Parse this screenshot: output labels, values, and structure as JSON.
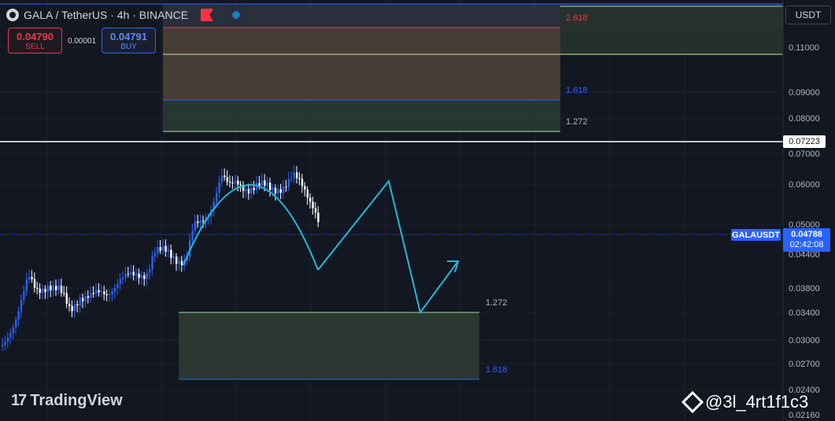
{
  "header": {
    "symbol": "GALA / TetherUS · 4h · BINANCE",
    "symbol_icon": "gala-coin-icon",
    "flag_icon": "flag-icon",
    "indicator_icon": "indicator-toggle-icon"
  },
  "trade": {
    "sell_price": "0.04790",
    "sell_label": "SELL",
    "spread": "0.00001",
    "buy_price": "0.04791",
    "buy_label": "BUY"
  },
  "currency": "USDT",
  "price_axis": {
    "labels": [
      "0.11000",
      "0.09000",
      "0.08000",
      "0.07000",
      "0.06000",
      "0.05000",
      "0.04400",
      "0.03800",
      "0.03400",
      "0.03000",
      "0.02700",
      "0.02400",
      "0.02160"
    ]
  },
  "horizontal_line": {
    "price_label": "0.07223"
  },
  "last_price": {
    "symbol_label": "GALAUSDT",
    "price": "0.04788",
    "countdown": "02:42:08"
  },
  "fib_upper": {
    "levels": [
      {
        "label": "2.618",
        "color": "#f23645"
      },
      {
        "label": "1.618",
        "color": "#2962ff"
      },
      {
        "label": "1.272",
        "color": "#b2b5be"
      }
    ]
  },
  "fib_lower": {
    "levels": [
      {
        "label": "1.272",
        "color": "#b2b5be"
      },
      {
        "label": "1.618",
        "color": "#2962ff"
      }
    ]
  },
  "watermark": {
    "logo": "17",
    "brand": "TradingView"
  },
  "author": {
    "icon": "binance-icon",
    "handle": "@3l_4rt1f1c3"
  },
  "colors": {
    "background": "#131722",
    "candle_up": "#2962ff",
    "candle_down": "#ffffff",
    "projection": "#22b8d8",
    "accent": "#2962ff"
  }
}
